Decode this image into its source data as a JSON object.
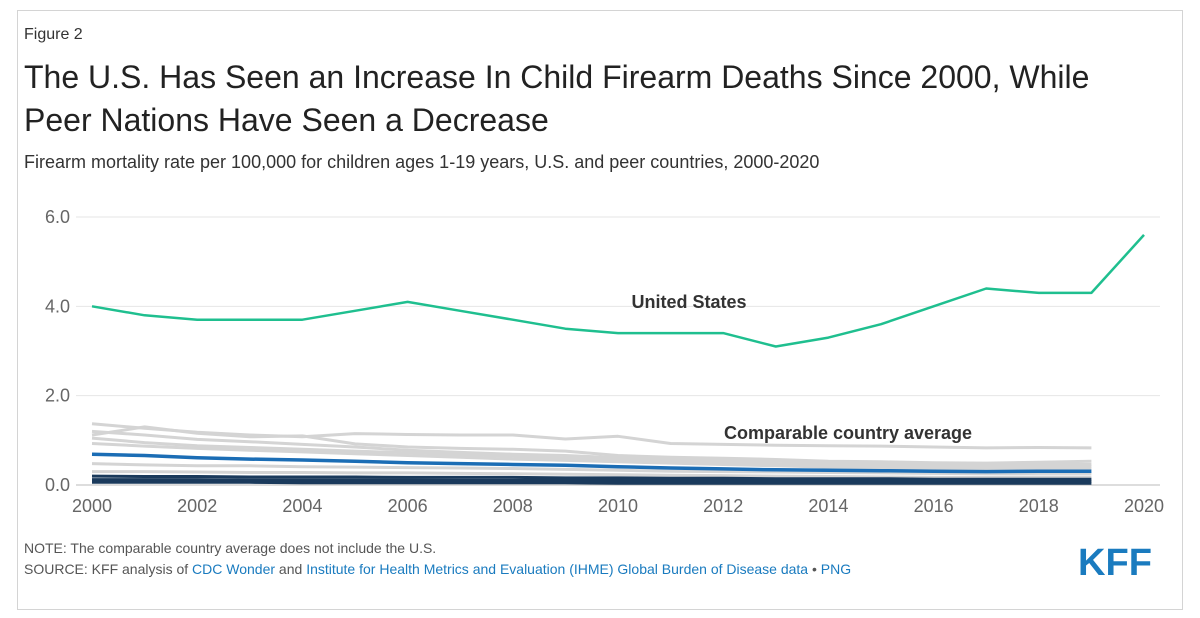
{
  "figure_label": "Figure 2",
  "title": "The U.S. Has Seen an Increase In Child Firearm Deaths Since 2000, While Peer Nations Have Seen a Decrease",
  "subtitle": "Firearm mortality rate per 100,000 for children ages 1-19 years, U.S. and peer countries, 2000-2020",
  "note": {
    "note_text": "NOTE: The comparable country average does not include the U.S.",
    "source_prefix": "SOURCE: KFF analysis of ",
    "source_link1": "CDC Wonder",
    "source_and": " and ",
    "source_link2": "Institute for Health Metrics and Evaluation (IHME) Global Burden of Disease data",
    "source_bullet": " • ",
    "source_link3": "PNG"
  },
  "logo_text": "KFF",
  "colors": {
    "us": "#1fbf8f",
    "average": "#1b6db5",
    "peers": "#d4d4d4",
    "dark_peers": "#1a3a5c",
    "grid": "#e6e6e6",
    "axis_text": "#666666",
    "brand": "#1a7bbf"
  },
  "chart_data": {
    "type": "line",
    "ylim": [
      0,
      6
    ],
    "yticks": [
      "0.0",
      "2.0",
      "4.0",
      "6.0"
    ],
    "xticks": [
      "2000",
      "2002",
      "2004",
      "2006",
      "2008",
      "2010",
      "2012",
      "2014",
      "2016",
      "2018",
      "2020"
    ],
    "grid": true,
    "annotations": [
      "United States",
      "Comparable country average"
    ],
    "series": [
      {
        "name": "United States",
        "x": [
          2000,
          2001,
          2002,
          2003,
          2004,
          2005,
          2006,
          2007,
          2008,
          2009,
          2010,
          2011,
          2012,
          2013,
          2014,
          2015,
          2016,
          2017,
          2018,
          2019,
          2020
        ],
        "values": [
          4.0,
          3.8,
          3.7,
          3.7,
          3.7,
          3.9,
          4.1,
          3.9,
          3.7,
          3.5,
          3.4,
          3.4,
          3.4,
          3.1,
          3.3,
          3.6,
          4.0,
          4.4,
          4.3,
          4.3,
          5.6
        ]
      },
      {
        "name": "Comparable country average",
        "x": [
          2000,
          2001,
          2002,
          2003,
          2004,
          2005,
          2006,
          2007,
          2008,
          2009,
          2010,
          2011,
          2012,
          2013,
          2014,
          2015,
          2016,
          2017,
          2018,
          2019
        ],
        "values": [
          0.69,
          0.66,
          0.61,
          0.58,
          0.56,
          0.53,
          0.5,
          0.48,
          0.46,
          0.44,
          0.41,
          0.38,
          0.36,
          0.34,
          0.33,
          0.32,
          0.31,
          0.3,
          0.31,
          0.31
        ]
      }
    ],
    "peer_series": [
      [
        1.37,
        1.27,
        1.18,
        1.12,
        1.08,
        1.15,
        1.13,
        1.12,
        1.12,
        1.03,
        1.09,
        0.93,
        0.91,
        0.89,
        0.88,
        0.87,
        0.85,
        0.83,
        0.84,
        0.83
      ],
      [
        1.12,
        1.3,
        1.16,
        1.08,
        1.1,
        0.92,
        0.85,
        0.82,
        0.8,
        0.76,
        0.66,
        0.62,
        0.6,
        0.57,
        0.53,
        0.52,
        0.5,
        0.49,
        0.51,
        0.53
      ],
      [
        1.2,
        1.12,
        1.02,
        0.97,
        0.91,
        0.85,
        0.78,
        0.73,
        0.69,
        0.66,
        0.61,
        0.58,
        0.55,
        0.53,
        0.5,
        0.47,
        0.45,
        0.44,
        0.46,
        0.46
      ],
      [
        1.05,
        0.95,
        0.88,
        0.84,
        0.8,
        0.76,
        0.72,
        0.68,
        0.64,
        0.6,
        0.57,
        0.53,
        0.5,
        0.47,
        0.44,
        0.42,
        0.4,
        0.4,
        0.42,
        0.42
      ],
      [
        0.93,
        0.87,
        0.82,
        0.78,
        0.74,
        0.7,
        0.66,
        0.62,
        0.58,
        0.55,
        0.52,
        0.49,
        0.46,
        0.43,
        0.4,
        0.38,
        0.36,
        0.35,
        0.37,
        0.37
      ],
      [
        0.48,
        0.45,
        0.43,
        0.43,
        0.41,
        0.4,
        0.39,
        0.38,
        0.37,
        0.35,
        0.33,
        0.31,
        0.3,
        0.29,
        0.28,
        0.27,
        0.26,
        0.25,
        0.26,
        0.26
      ],
      [
        0.3,
        0.3,
        0.29,
        0.28,
        0.28,
        0.27,
        0.27,
        0.26,
        0.25,
        0.24,
        0.23,
        0.22,
        0.21,
        0.2,
        0.19,
        0.18,
        0.17,
        0.17,
        0.18,
        0.18
      ]
    ],
    "dark_series": [
      [
        0.2,
        0.19,
        0.19,
        0.18,
        0.18,
        0.18,
        0.17,
        0.17,
        0.17,
        0.16,
        0.16,
        0.15,
        0.15,
        0.14,
        0.14,
        0.14,
        0.13,
        0.13,
        0.13,
        0.13
      ],
      [
        0.12,
        0.12,
        0.12,
        0.11,
        0.11,
        0.11,
        0.11,
        0.1,
        0.1,
        0.1,
        0.1,
        0.09,
        0.09,
        0.09,
        0.08,
        0.08,
        0.08,
        0.08,
        0.08,
        0.08
      ],
      [
        0.06,
        0.06,
        0.06,
        0.06,
        0.05,
        0.05,
        0.05,
        0.05,
        0.05,
        0.05,
        0.04,
        0.04,
        0.04,
        0.04,
        0.04,
        0.04,
        0.04,
        0.04,
        0.04,
        0.04
      ]
    ]
  }
}
